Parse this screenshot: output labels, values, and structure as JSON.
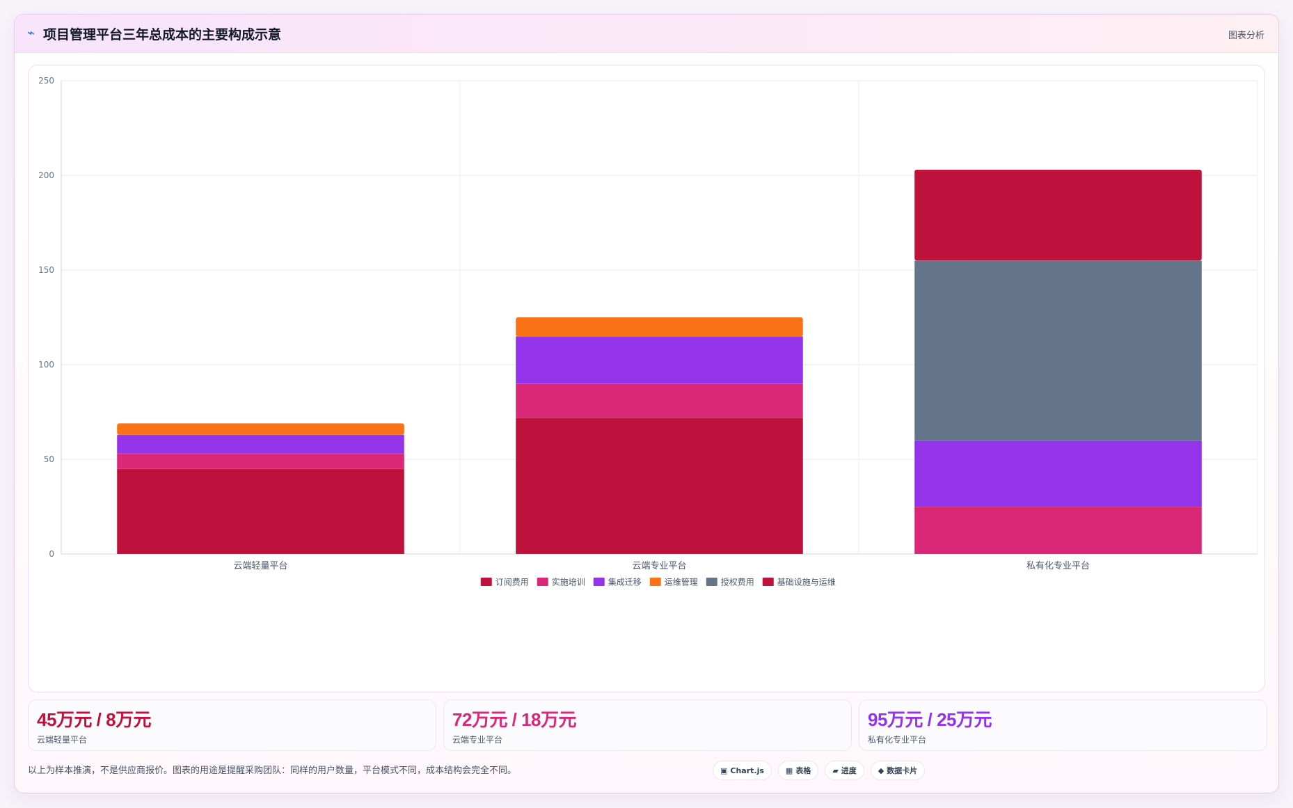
{
  "header": {
    "icon": "trend-arrow-icon",
    "title": "项目管理平台三年总成本的主要构成示意",
    "tag": "图表分析"
  },
  "chart_data": {
    "type": "bar",
    "stacked": true,
    "title": "",
    "xlabel": "",
    "ylabel": "",
    "ylim": [
      0,
      250
    ],
    "yticks": [
      0,
      50,
      100,
      150,
      200,
      250
    ],
    "grid": true,
    "legend_position": "bottom",
    "categories": [
      "云端轻量平台",
      "云端专业平台",
      "私有化专业平台"
    ],
    "series": [
      {
        "name": "订阅费用",
        "color": "#be123c",
        "values": [
          45,
          72,
          0
        ]
      },
      {
        "name": "实施培训",
        "color": "#db2777",
        "values": [
          8,
          18,
          25
        ]
      },
      {
        "name": "集成迁移",
        "color": "#9333ea",
        "values": [
          10,
          25,
          35
        ]
      },
      {
        "name": "运维管理",
        "color": "#f97316",
        "values": [
          6,
          10,
          0
        ]
      },
      {
        "name": "授权费用",
        "color": "#64748b",
        "values": [
          0,
          0,
          95
        ]
      },
      {
        "name": "基础设施与运维",
        "color": "#be123c",
        "values": [
          0,
          0,
          48
        ]
      }
    ]
  },
  "stats": [
    {
      "value": "45万元 / 8万元",
      "label": "云端轻量平台",
      "color": "#be123c"
    },
    {
      "value": "72万元 / 18万元",
      "label": "云端专业平台",
      "color": "#db2777"
    },
    {
      "value": "95万元 / 25万元",
      "label": "私有化专业平台",
      "color": "#9333ea"
    }
  ],
  "footer": {
    "note": "以上为样本推演，不是供应商报价。图表的用途是提醒采购团队：同样的用户数量，平台模式不同，成本结构会完全不同。",
    "chips": [
      {
        "icon": "▣",
        "label": "Chart.js"
      },
      {
        "icon": "▦",
        "label": "表格"
      },
      {
        "icon": "▰",
        "label": "进度"
      },
      {
        "icon": "◆",
        "label": "数据卡片"
      }
    ]
  }
}
